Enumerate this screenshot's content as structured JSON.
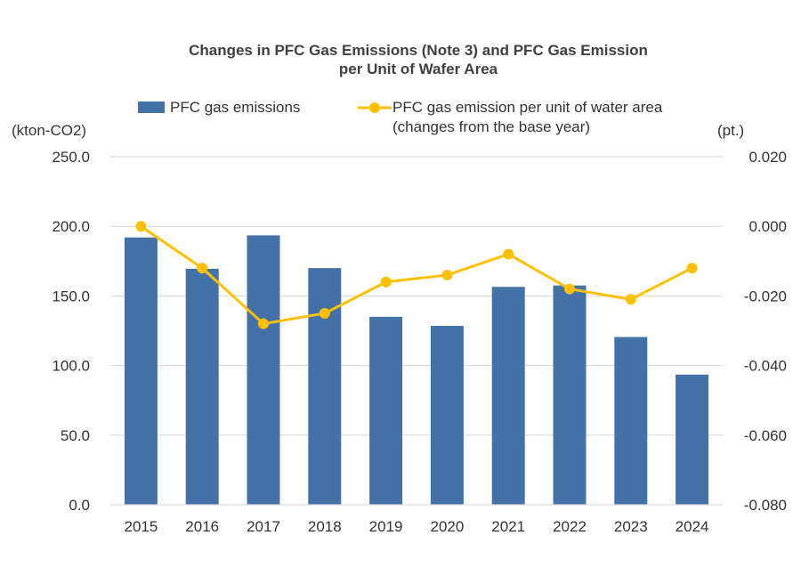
{
  "chart_data": {
    "type": "bar+line",
    "title_line1": "Changes in PFC Gas Emissions (Note 3) and PFC Gas Emission",
    "title_line2": "per Unit of Wafer Area",
    "categories": [
      "2015",
      "2016",
      "2017",
      "2018",
      "2019",
      "2020",
      "2021",
      "2022",
      "2023",
      "2024"
    ],
    "series": [
      {
        "name": "PFC gas emissions",
        "type": "bar",
        "axis": "left",
        "values": [
          192,
          169.5,
          193.5,
          170,
          135,
          128.5,
          156.5,
          157.5,
          120.5,
          93.5
        ]
      },
      {
        "name": "PFC gas emission per unit of water area",
        "name_line2": "(changes from the base year)",
        "type": "line",
        "axis": "right",
        "values": [
          0.0,
          -0.012,
          -0.028,
          -0.025,
          -0.016,
          -0.014,
          -0.008,
          -0.018,
          -0.021,
          -0.012
        ]
      }
    ],
    "y_left": {
      "unit": "(kton-CO2)",
      "range": [
        0,
        250
      ],
      "ticks": [
        "0.0",
        "50.0",
        "100.0",
        "150.0",
        "200.0",
        "250.0"
      ],
      "tick_values": [
        0,
        50,
        100,
        150,
        200,
        250
      ]
    },
    "y_right": {
      "unit": "(pt.)",
      "range": [
        -0.08,
        0.02
      ],
      "ticks": [
        "-0.080",
        "-0.060",
        "-0.040",
        "-0.020",
        "0.000",
        "0.020"
      ],
      "tick_values": [
        -0.08,
        -0.06,
        -0.04,
        -0.02,
        0.0,
        0.02
      ]
    },
    "grid": true,
    "legend_position": "top"
  },
  "colors": {
    "bar": "#4472A8",
    "line": "#FFC000",
    "grid": "#D9D9D9",
    "text": "#333333"
  }
}
